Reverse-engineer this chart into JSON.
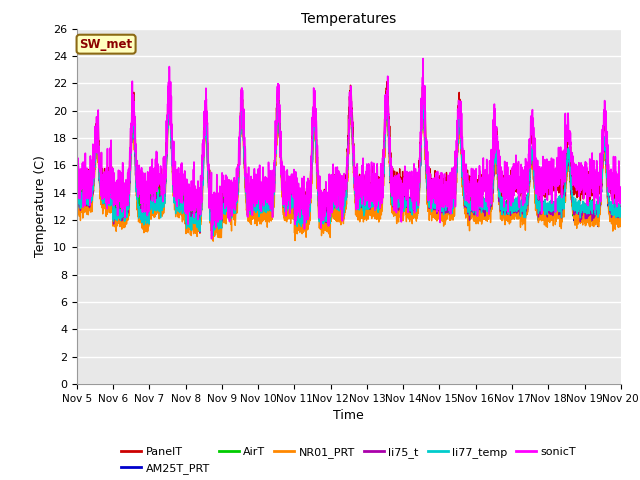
{
  "title": "Temperatures",
  "xlabel": "Time",
  "ylabel": "Temperature (C)",
  "ylim": [
    0,
    26
  ],
  "yticks": [
    0,
    2,
    4,
    6,
    8,
    10,
    12,
    14,
    16,
    18,
    20,
    22,
    24,
    26
  ],
  "xtick_labels": [
    "Nov 5",
    "Nov 6",
    "Nov 7",
    "Nov 8",
    "Nov 9",
    "Nov 10",
    "Nov 11",
    "Nov 12",
    "Nov 13",
    "Nov 14",
    "Nov 15",
    "Nov 16",
    "Nov 17",
    "Nov 18",
    "Nov 19",
    "Nov 20"
  ],
  "annotation_text": "SW_met",
  "annotation_color": "#8B0000",
  "annotation_bg": "#FFFFC0",
  "annotation_border": "#8B6914",
  "series_order": [
    "PanelT",
    "AM25T_PRT",
    "AirT",
    "NR01_PRT",
    "li75_t",
    "li77_temp",
    "sonicT"
  ],
  "series_colors": {
    "PanelT": "#CC0000",
    "AM25T_PRT": "#0000CC",
    "AirT": "#00CC00",
    "NR01_PRT": "#FF8800",
    "li75_t": "#AA00AA",
    "li77_temp": "#00CCCC",
    "sonicT": "#FF00FF"
  },
  "series_lw": {
    "PanelT": 1.0,
    "AM25T_PRT": 1.0,
    "AirT": 1.0,
    "NR01_PRT": 1.0,
    "li75_t": 1.0,
    "li77_temp": 1.0,
    "sonicT": 1.2
  },
  "bg_color": "#E8E8E8",
  "grid_color": "#FFFFFF",
  "n_points": 3000
}
